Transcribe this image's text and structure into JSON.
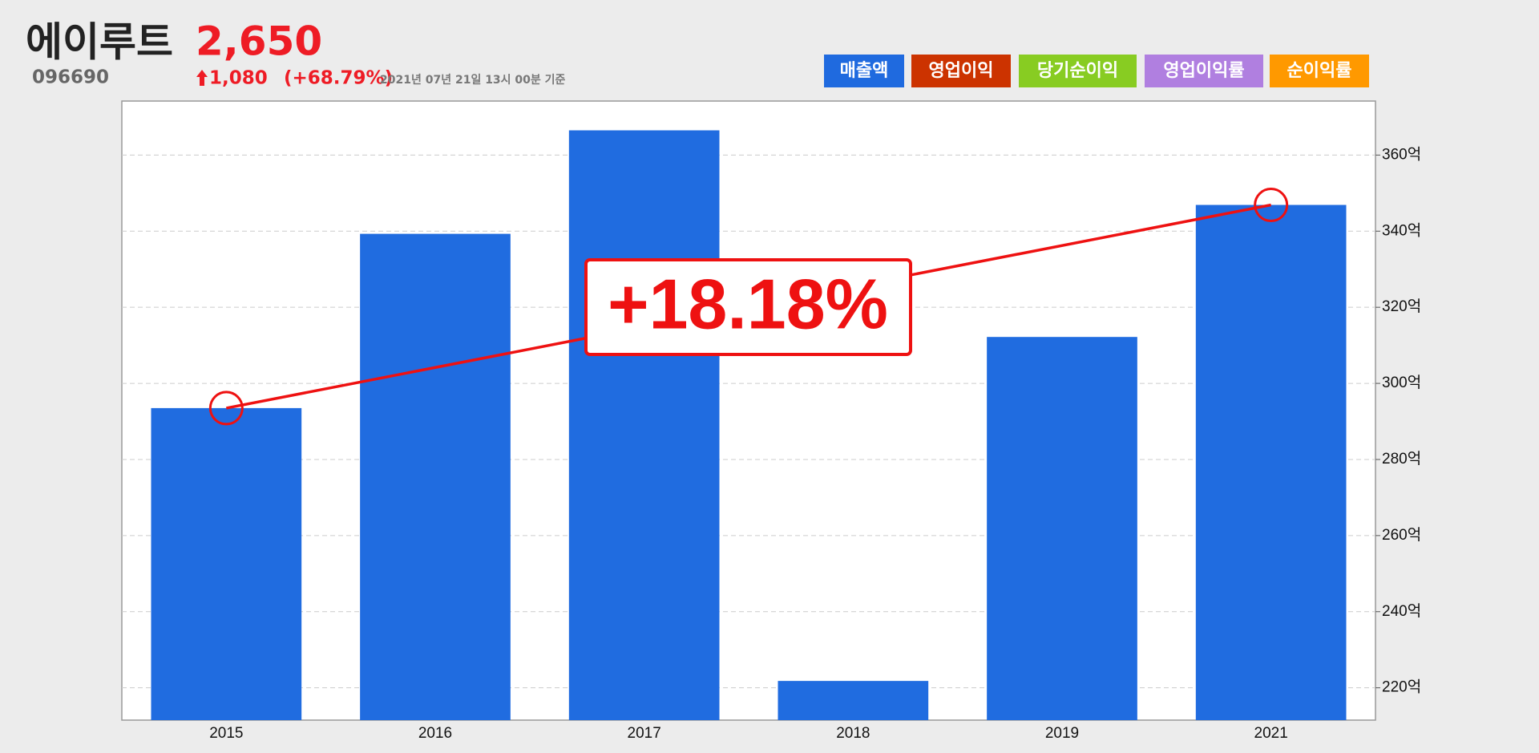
{
  "header": {
    "name": "에이루트",
    "price": "2,650",
    "code": "096690",
    "change": "1,080",
    "change_pct": "(+68.79%)",
    "timestamp": "2021년 07년 21일 13시 00분 기준"
  },
  "buttons": [
    {
      "label": "매출액",
      "color": "#1f6adf"
    },
    {
      "label": "영업이익",
      "color": "#cc3300"
    },
    {
      "label": "당기순이익",
      "color": "#88cc22"
    },
    {
      "label": "영업이익률",
      "color": "#b07fe0"
    },
    {
      "label": "순이익률",
      "color": "#ff9900"
    }
  ],
  "chart_data": {
    "type": "bar",
    "categories": [
      "2015",
      "2016",
      "2017",
      "2018",
      "2019",
      "2021"
    ],
    "values": [
      293.5,
      339.3,
      366.5,
      221.8,
      312.2,
      346.9
    ],
    "color": "#206ce0",
    "ylim": [
      211.5,
      374.2
    ],
    "yticks": [
      {
        "value": 220,
        "label": "220억"
      },
      {
        "value": 240,
        "label": "240억"
      },
      {
        "value": 260,
        "label": "260억"
      },
      {
        "value": 280,
        "label": "280억"
      },
      {
        "value": 300,
        "label": "300억"
      },
      {
        "value": 320,
        "label": "320억"
      },
      {
        "value": 340,
        "label": "340억"
      },
      {
        "value": 360,
        "label": "360억"
      }
    ],
    "grid": true,
    "annotation": {
      "text": "+18.18%",
      "color": "#ee1111"
    }
  }
}
